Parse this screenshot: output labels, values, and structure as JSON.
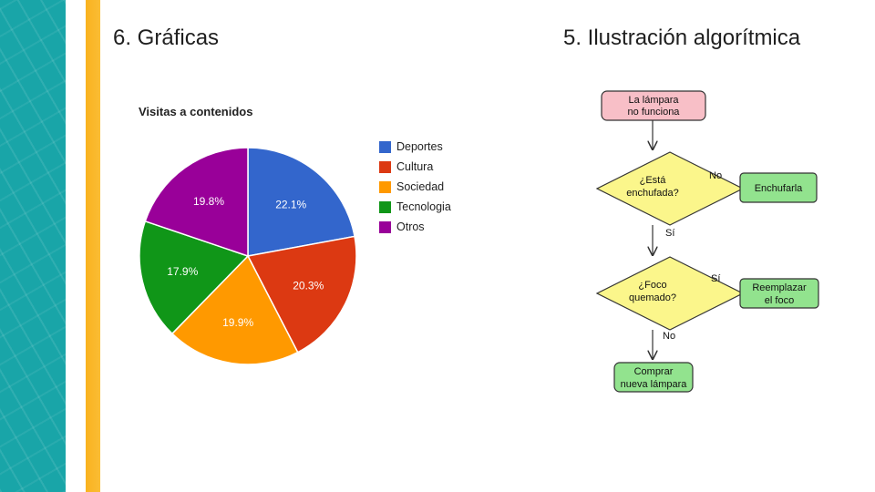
{
  "slide": {
    "left_title": "6. Gráficas",
    "right_title": "5. Ilustración algorítmica"
  },
  "chart_data": {
    "type": "pie",
    "title": "Visitas a contenidos",
    "legend_position": "right",
    "slices": [
      {
        "label": "Deportes",
        "value": 22.1,
        "display": "22.1%",
        "color": "#3366cc"
      },
      {
        "label": "Cultura",
        "value": 20.3,
        "display": "20.3%",
        "color": "#dc3912"
      },
      {
        "label": "Sociedad",
        "value": 19.9,
        "display": "19.9%",
        "color": "#ff9900"
      },
      {
        "label": "Tecnologia",
        "value": 17.9,
        "display": "17.9%",
        "color": "#109618"
      },
      {
        "label": "Otros",
        "value": 19.8,
        "display": "19.8%",
        "color": "#990099"
      }
    ]
  },
  "flowchart": {
    "start": {
      "line1": "La lámpara",
      "line2": "no funciona"
    },
    "decision1": {
      "line1": "¿Está",
      "line2": "enchufada?"
    },
    "decision1_no": "No",
    "action1": "Enchufarla",
    "decision1_yes": "Sí",
    "decision2": {
      "line1": "¿Foco",
      "line2": "quemado?"
    },
    "decision2_yes": "Sí",
    "action2": {
      "line1": "Reemplazar",
      "line2": "el foco"
    },
    "decision2_no": "No",
    "end": {
      "line1": "Comprar",
      "line2": "nueva lámpara"
    },
    "colors": {
      "start": "#f8bfc7",
      "decision": "#fbf68b",
      "action": "#92e38e",
      "stroke": "#333333"
    }
  }
}
